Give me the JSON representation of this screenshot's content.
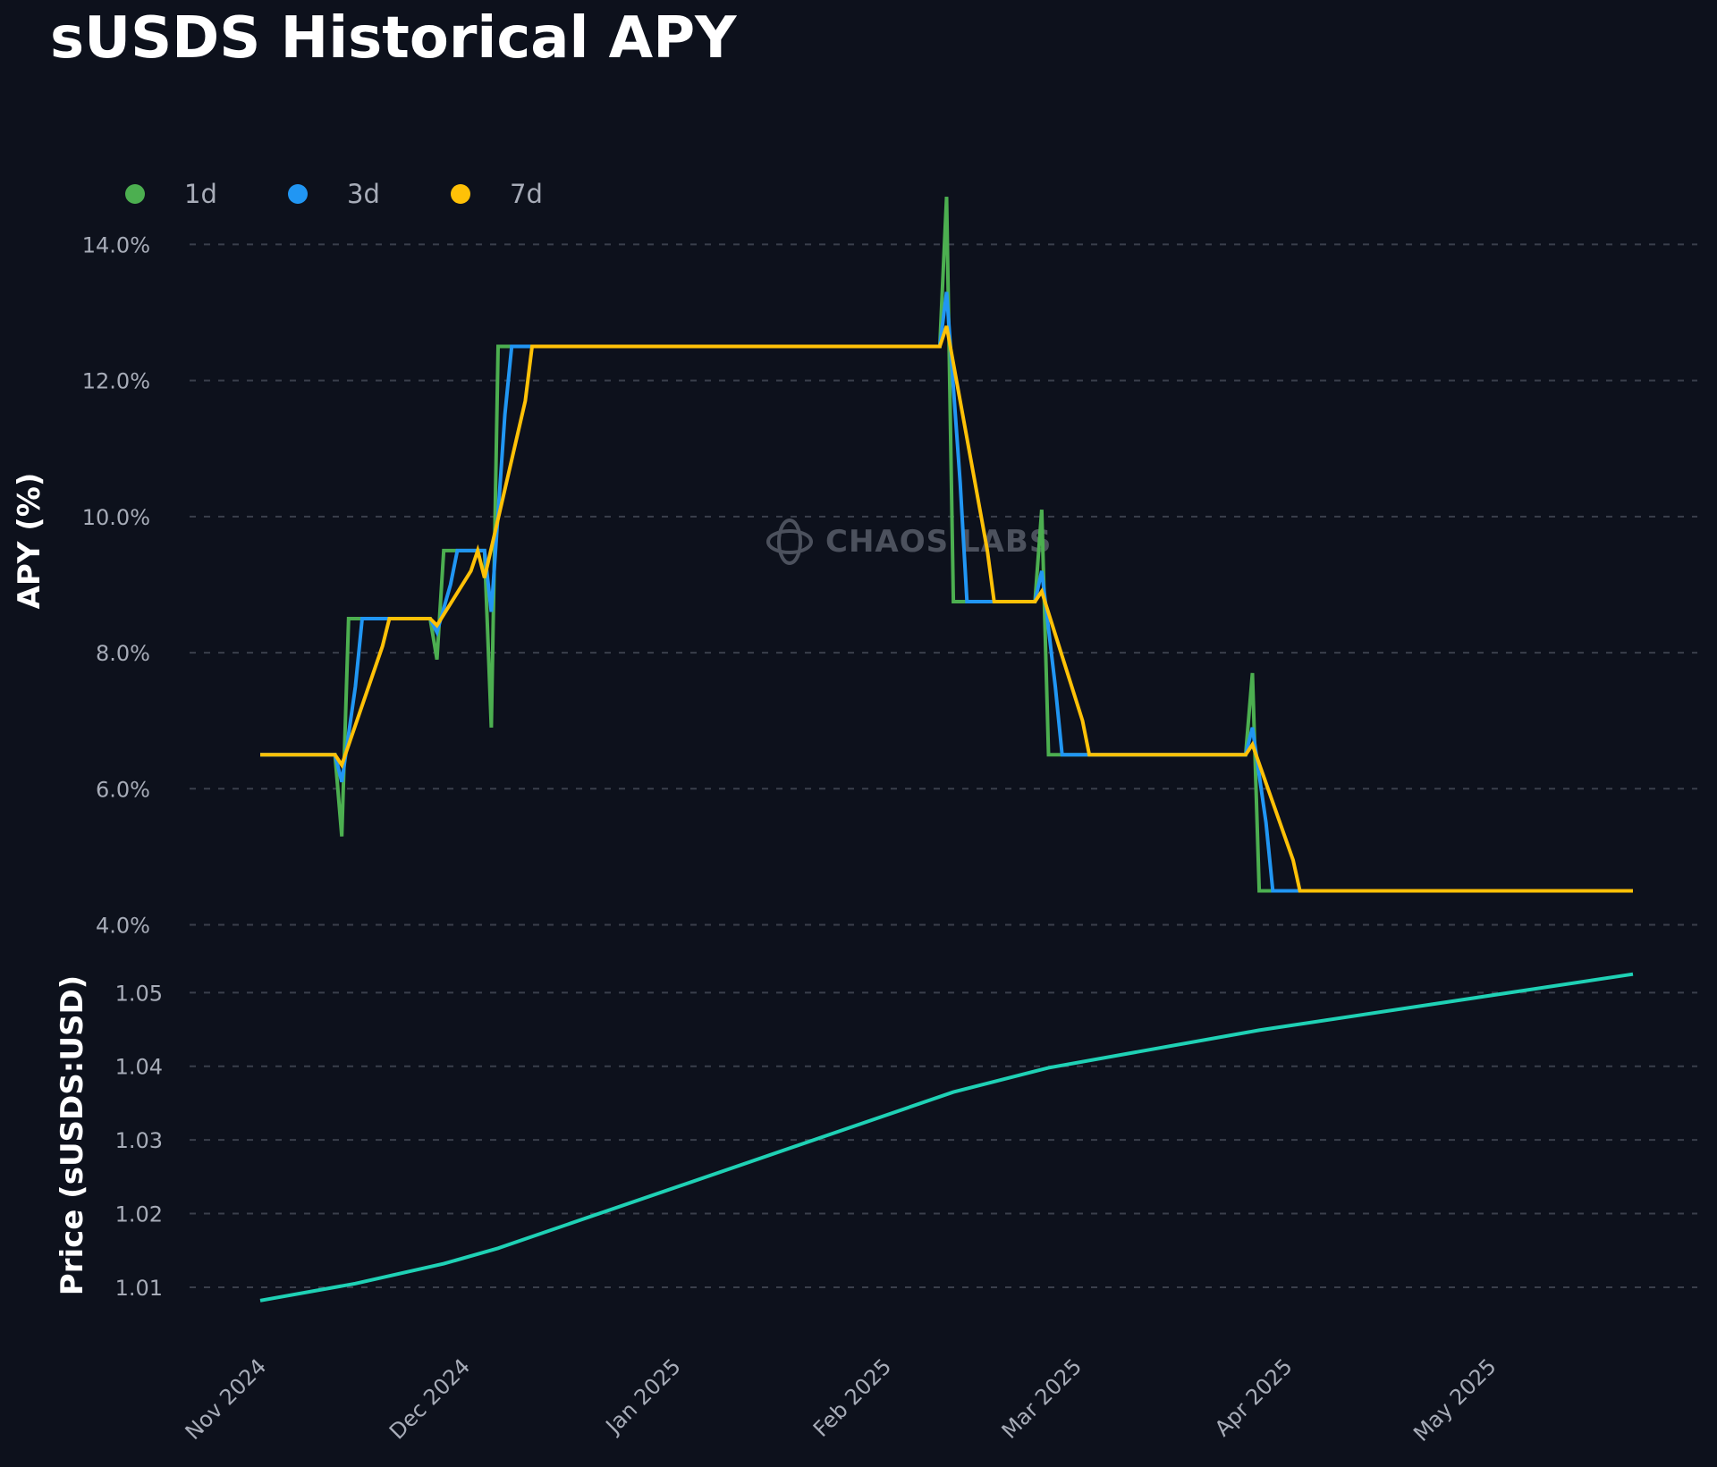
{
  "title": "sUSDS Historical APY",
  "watermark": "CHAOS LABS",
  "colors": {
    "background": "#0d111c",
    "grid": "#3a3f4b",
    "1d": "#4caf50",
    "3d": "#2196f3",
    "7d": "#ffc107",
    "price": "#1fd1b5"
  },
  "chart_data": [
    {
      "type": "line",
      "ylabel": "APY (%)",
      "ylim": [
        3.6,
        15.2
      ],
      "yticks": [
        "4.0%",
        "6.0%",
        "8.0%",
        "10.0%",
        "12.0%",
        "14.0%"
      ],
      "grid": true,
      "legend_position": "top-left",
      "series": [
        {
          "name": "1d",
          "color_key": "1d",
          "points": [
            [
              "2024-11-01",
              6.5
            ],
            [
              "2024-11-12",
              6.5
            ],
            [
              "2024-11-13",
              5.3
            ],
            [
              "2024-11-14",
              8.5
            ],
            [
              "2024-11-20",
              8.5
            ],
            [
              "2024-11-26",
              8.5
            ],
            [
              "2024-11-27",
              7.9
            ],
            [
              "2024-11-28",
              9.5
            ],
            [
              "2024-12-04",
              9.5
            ],
            [
              "2024-12-05",
              6.9
            ],
            [
              "2024-12-06",
              12.5
            ],
            [
              "2025-02-09",
              12.5
            ],
            [
              "2025-02-10",
              14.7
            ],
            [
              "2025-02-11",
              8.75
            ],
            [
              "2025-02-23",
              8.75
            ],
            [
              "2025-02-24",
              10.1
            ],
            [
              "2025-02-25",
              6.5
            ],
            [
              "2025-03-26",
              6.5
            ],
            [
              "2025-03-27",
              7.7
            ],
            [
              "2025-03-28",
              4.5
            ],
            [
              "2025-05-22",
              4.5
            ]
          ]
        },
        {
          "name": "3d",
          "color_key": "3d",
          "points": [
            [
              "2024-11-01",
              6.5
            ],
            [
              "2024-11-12",
              6.5
            ],
            [
              "2024-11-13",
              6.1
            ],
            [
              "2024-11-15",
              7.5
            ],
            [
              "2024-11-16",
              8.5
            ],
            [
              "2024-11-26",
              8.5
            ],
            [
              "2024-11-27",
              8.3
            ],
            [
              "2024-11-29",
              9.0
            ],
            [
              "2024-11-30",
              9.5
            ],
            [
              "2024-12-04",
              9.5
            ],
            [
              "2024-12-05",
              8.6
            ],
            [
              "2024-12-07",
              11.5
            ],
            [
              "2024-12-08",
              12.5
            ],
            [
              "2025-02-09",
              12.5
            ],
            [
              "2025-02-10",
              13.3
            ],
            [
              "2025-02-12",
              10.5
            ],
            [
              "2025-02-13",
              8.75
            ],
            [
              "2025-02-23",
              8.75
            ],
            [
              "2025-02-24",
              9.2
            ],
            [
              "2025-02-26",
              7.5
            ],
            [
              "2025-02-27",
              6.5
            ],
            [
              "2025-03-26",
              6.5
            ],
            [
              "2025-03-27",
              6.9
            ],
            [
              "2025-03-29",
              5.5
            ],
            [
              "2025-03-30",
              4.5
            ],
            [
              "2025-05-22",
              4.5
            ]
          ]
        },
        {
          "name": "7d",
          "color_key": "7d",
          "points": [
            [
              "2024-11-01",
              6.5
            ],
            [
              "2024-11-12",
              6.5
            ],
            [
              "2024-11-13",
              6.35
            ],
            [
              "2024-11-19",
              8.1
            ],
            [
              "2024-11-20",
              8.5
            ],
            [
              "2024-11-26",
              8.5
            ],
            [
              "2024-11-27",
              8.4
            ],
            [
              "2024-12-02",
              9.2
            ],
            [
              "2024-12-03",
              9.5
            ],
            [
              "2024-12-04",
              9.1
            ],
            [
              "2024-12-10",
              11.7
            ],
            [
              "2024-12-11",
              12.5
            ],
            [
              "2025-02-09",
              12.5
            ],
            [
              "2025-02-10",
              12.8
            ],
            [
              "2025-02-16",
              9.5
            ],
            [
              "2025-02-17",
              8.75
            ],
            [
              "2025-02-23",
              8.75
            ],
            [
              "2025-02-24",
              8.9
            ],
            [
              "2025-03-02",
              7.0
            ],
            [
              "2025-03-03",
              6.5
            ],
            [
              "2025-03-26",
              6.5
            ],
            [
              "2025-03-27",
              6.65
            ],
            [
              "2025-04-02",
              4.95
            ],
            [
              "2025-04-03",
              4.5
            ],
            [
              "2025-05-22",
              4.5
            ]
          ]
        }
      ]
    },
    {
      "type": "line",
      "ylabel": "Price (sUSDS:USD)",
      "ylim": [
        1.0015,
        1.0555
      ],
      "yticks": [
        "1.01",
        "1.02",
        "1.03",
        "1.04",
        "1.05"
      ],
      "grid": true,
      "x_tick_labels": [
        "Nov 2024",
        "Dec 2024",
        "Jan 2025",
        "Feb 2025",
        "Mar 2025",
        "Apr 2025",
        "May 2025"
      ],
      "x_tick_dates": [
        "2024-11-01",
        "2024-12-01",
        "2025-01-01",
        "2025-02-01",
        "2025-03-01",
        "2025-04-01",
        "2025-05-01"
      ],
      "series": [
        {
          "color_key": "price",
          "points": [
            [
              "2024-11-01",
              1.0082
            ],
            [
              "2024-11-15",
              1.0105
            ],
            [
              "2024-11-28",
              1.0132
            ],
            [
              "2024-12-06",
              1.0153
            ],
            [
              "2025-02-11",
              1.0365
            ],
            [
              "2025-02-25",
              1.0398
            ],
            [
              "2025-03-28",
              1.0449
            ],
            [
              "2025-05-22",
              1.0525
            ]
          ]
        }
      ]
    }
  ]
}
